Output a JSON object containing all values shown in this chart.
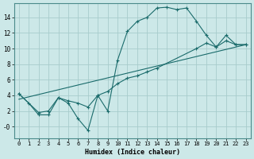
{
  "xlabel": "Humidex (Indice chaleur)",
  "background_color": "#cce8e8",
  "grid_color": "#a8cccc",
  "line_color": "#1a6b6b",
  "xlim": [
    -0.5,
    23.5
  ],
  "ylim": [
    -1.5,
    15.8
  ],
  "xticks": [
    0,
    1,
    2,
    3,
    4,
    5,
    6,
    7,
    8,
    9,
    10,
    11,
    12,
    13,
    14,
    15,
    16,
    17,
    18,
    19,
    20,
    21,
    22,
    23
  ],
  "yticks": [
    0,
    2,
    4,
    6,
    8,
    10,
    12,
    14
  ],
  "ytick_labels": [
    "-0",
    "2",
    "4",
    "6",
    "8",
    "10",
    "12",
    "14"
  ],
  "lines": [
    {
      "x": [
        0,
        1,
        2,
        3,
        4,
        5,
        6,
        7,
        8,
        9,
        10,
        11,
        12,
        13,
        14,
        15,
        16,
        17,
        18,
        19,
        20,
        21,
        22,
        23
      ],
      "y": [
        4.2,
        3.0,
        1.5,
        1.5,
        3.7,
        3.0,
        1.0,
        -0.5,
        4.0,
        2.0,
        8.5,
        12.2,
        13.5,
        14.0,
        15.2,
        15.3,
        15.0,
        15.2,
        13.5,
        11.7,
        10.2,
        11.0,
        10.5,
        10.5
      ],
      "markers": true
    },
    {
      "x": [
        0,
        2,
        3,
        4,
        5,
        6,
        7,
        8,
        9,
        10,
        11,
        12,
        13,
        14,
        18,
        19,
        20,
        21,
        22,
        23
      ],
      "y": [
        4.2,
        1.8,
        2.0,
        3.7,
        3.3,
        3.0,
        2.5,
        4.0,
        4.5,
        5.5,
        6.2,
        6.5,
        7.0,
        7.5,
        10.0,
        10.7,
        10.2,
        11.7,
        10.5,
        10.5
      ],
      "markers": true
    },
    {
      "x": [
        0,
        23
      ],
      "y": [
        3.5,
        10.5
      ],
      "markers": false
    }
  ]
}
